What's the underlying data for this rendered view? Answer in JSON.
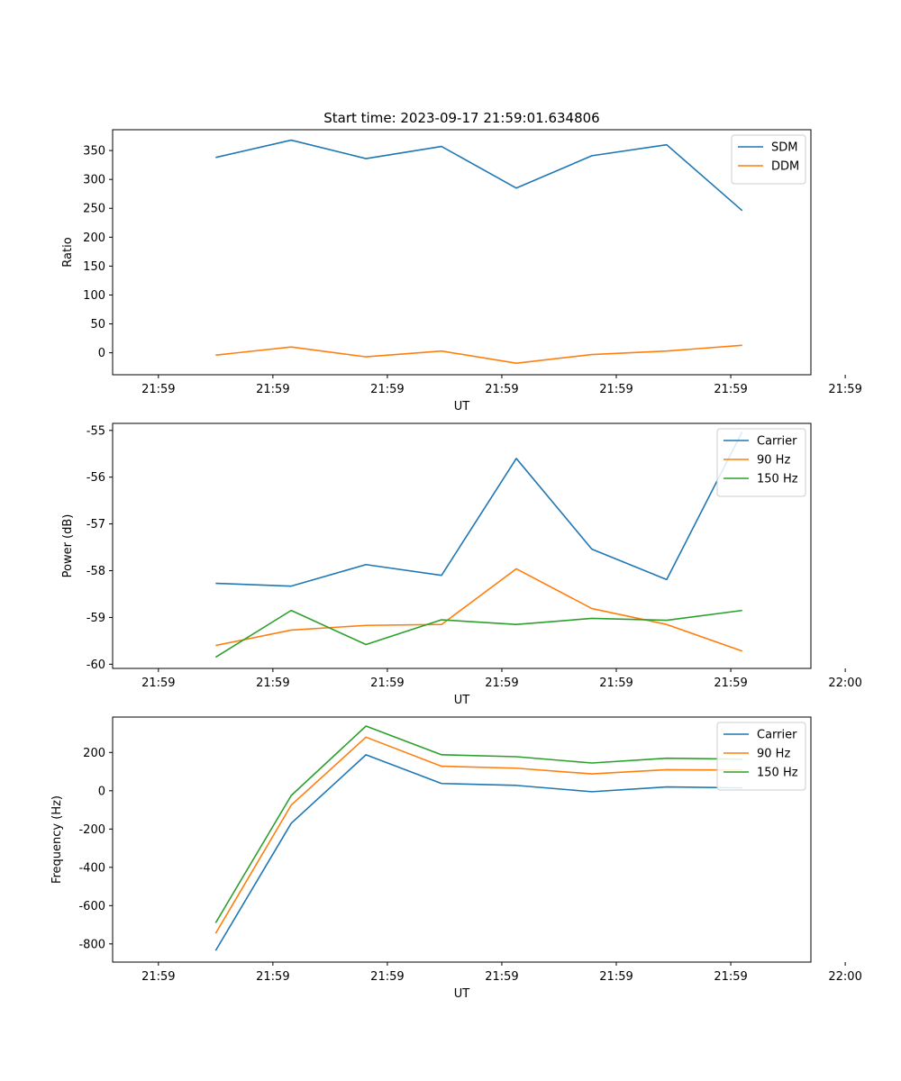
{
  "chart_data": [
    {
      "type": "line",
      "title": "Start time: 2023-09-17 21:59:01.634806",
      "xlabel": "UT",
      "ylabel": "Ratio",
      "ylim": [
        -38,
        386
      ],
      "yticks": [
        0,
        50,
        100,
        150,
        200,
        250,
        300,
        350
      ],
      "xlim": [
        -0.6,
        8.55
      ],
      "xticks": [
        0,
        1.5,
        3,
        4.5,
        6,
        7.5,
        9
      ],
      "xticklabels": [
        "21:59",
        "21:59",
        "21:59",
        "21:59",
        "21:59",
        "21:59",
        "21:59"
      ],
      "x": [
        0.75,
        1.74,
        2.72,
        3.71,
        4.69,
        5.68,
        6.66,
        7.65
      ],
      "series": [
        {
          "name": "SDM",
          "color": "#1f77b4",
          "values": [
            338,
            368,
            336,
            357,
            285,
            341,
            360,
            246
          ]
        },
        {
          "name": "DDM",
          "color": "#ff7f0e",
          "values": [
            -4,
            10,
            -7,
            3,
            -18,
            -3,
            3,
            13
          ]
        }
      ],
      "legend": "top-right"
    },
    {
      "type": "line",
      "title": "",
      "xlabel": "UT",
      "ylabel": "Power (dB)",
      "ylim": [
        -60.09,
        -54.85
      ],
      "yticks": [
        -60,
        -59,
        -58,
        -57,
        -56,
        -55
      ],
      "xlim": [
        -0.6,
        8.55
      ],
      "xticks": [
        0,
        1.5,
        3,
        4.5,
        6,
        7.5,
        9
      ],
      "xticklabels": [
        "21:59",
        "21:59",
        "21:59",
        "21:59",
        "21:59",
        "21:59",
        "22:00"
      ],
      "x": [
        0.75,
        1.74,
        2.72,
        3.71,
        4.69,
        5.68,
        6.66,
        7.65
      ],
      "series": [
        {
          "name": "Carrier",
          "color": "#1f77b4",
          "values": [
            -58.27,
            -58.33,
            -57.87,
            -58.1,
            -55.6,
            -57.54,
            -58.19,
            -55.03
          ]
        },
        {
          "name": "90 Hz",
          "color": "#ff7f0e",
          "values": [
            -59.6,
            -59.27,
            -59.17,
            -59.15,
            -57.96,
            -58.81,
            -59.15,
            -59.72
          ]
        },
        {
          "name": "150 Hz",
          "color": "#2ca02c",
          "values": [
            -59.85,
            -58.85,
            -59.58,
            -59.05,
            -59.15,
            -59.02,
            -59.06,
            -58.85
          ]
        }
      ],
      "legend": "top-right"
    },
    {
      "type": "line",
      "title": "",
      "xlabel": "UT",
      "ylabel": "Frequency (Hz)",
      "ylim": [
        -895,
        385
      ],
      "yticks": [
        -800,
        -600,
        -400,
        -200,
        0,
        200
      ],
      "xlim": [
        -0.6,
        8.55
      ],
      "xticks": [
        0,
        1.5,
        3,
        4.5,
        6,
        7.5,
        9
      ],
      "xticklabels": [
        "21:59",
        "21:59",
        "21:59",
        "21:59",
        "21:59",
        "21:59",
        "22:00"
      ],
      "x": [
        0.75,
        1.74,
        2.72,
        3.71,
        4.69,
        5.68,
        6.66,
        7.65
      ],
      "series": [
        {
          "name": "Carrier",
          "color": "#1f77b4",
          "values": [
            -835,
            -170,
            188,
            38,
            28,
            -5,
            20,
            15
          ]
        },
        {
          "name": "90 Hz",
          "color": "#ff7f0e",
          "values": [
            -745,
            -75,
            280,
            128,
            118,
            88,
            110,
            108
          ]
        },
        {
          "name": "150 Hz",
          "color": "#2ca02c",
          "values": [
            -690,
            -25,
            338,
            188,
            178,
            145,
            170,
            165
          ]
        }
      ],
      "legend": "top-right"
    }
  ]
}
